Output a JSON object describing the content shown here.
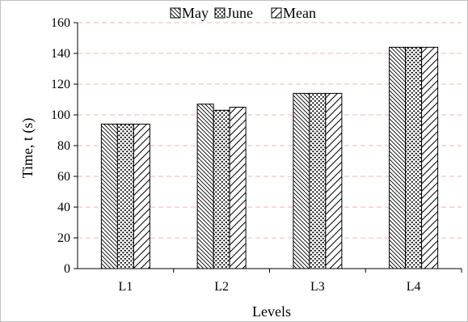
{
  "chart_data": {
    "type": "bar",
    "title": "",
    "xlabel": "Levels",
    "ylabel": "Time, t (s)",
    "categories": [
      "L1",
      "L2",
      "L3",
      "L4"
    ],
    "series": [
      {
        "name": "May",
        "values": [
          94,
          107,
          114,
          144
        ],
        "pattern": "diagonal-hatch"
      },
      {
        "name": "June",
        "values": [
          94,
          103,
          114,
          144
        ],
        "pattern": "dots"
      },
      {
        "name": "Mean",
        "values": [
          94,
          105,
          114,
          144
        ],
        "pattern": "wide-diagonal-hatch"
      }
    ],
    "ylim": [
      0,
      160
    ],
    "yticks": [
      0,
      20,
      40,
      60,
      80,
      100,
      120,
      140,
      160
    ],
    "grid": true,
    "grid_style": "dashed",
    "grid_color": "#f4b6b6",
    "legend_position": "top-center",
    "bar_fill": "#ffffff",
    "bar_stroke": "#000000"
  }
}
